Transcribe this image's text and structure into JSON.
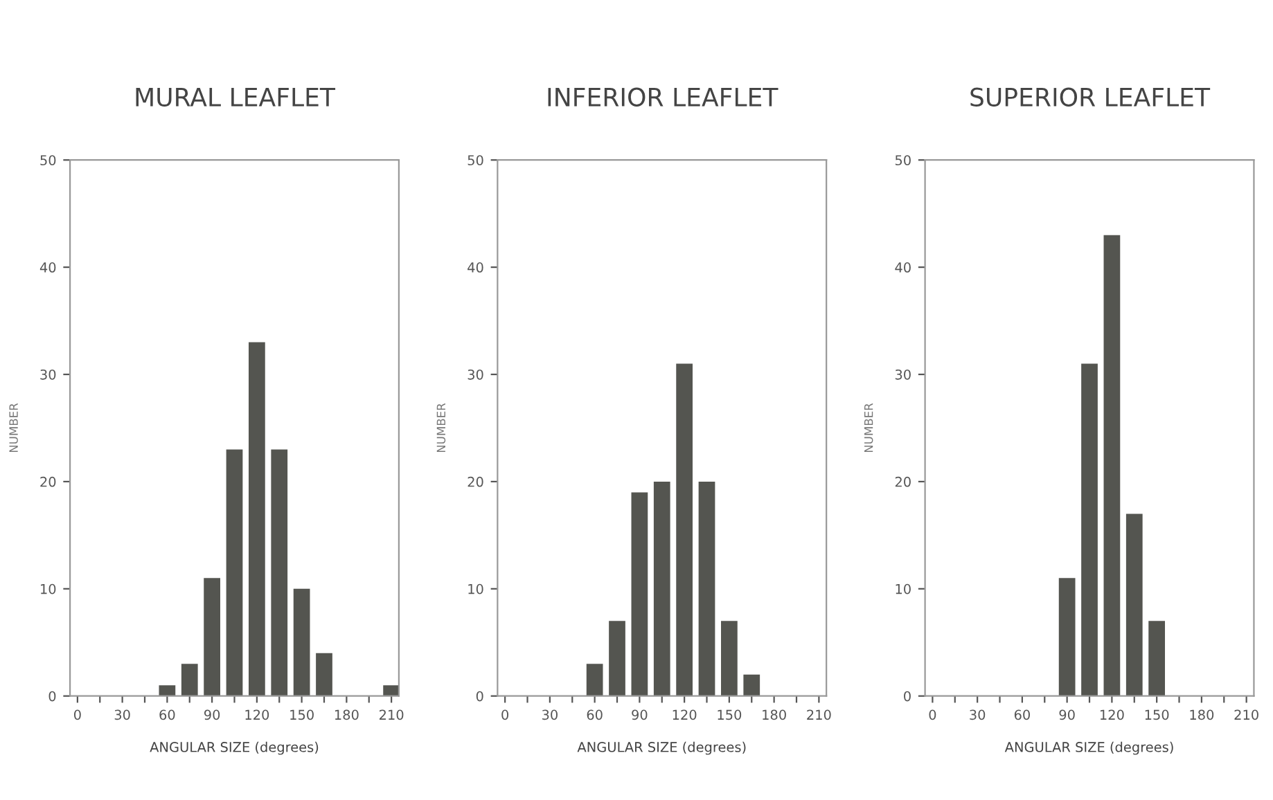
{
  "chart_data": [
    {
      "type": "bar",
      "title": "MURAL LEAFLET",
      "xlabel": "ANGULAR SIZE (degrees)",
      "ylabel": "NUMBER",
      "color": "#545550",
      "x": [
        60,
        75,
        90,
        105,
        120,
        135,
        150,
        165,
        210
      ],
      "values": [
        1,
        3,
        11,
        23,
        33,
        23,
        10,
        4,
        1
      ],
      "xlim": [
        -5,
        215
      ],
      "ylim": [
        0,
        50
      ],
      "xticks": [
        0,
        {
          "value": 15,
          "label": null
        },
        30,
        {
          "value": 45,
          "label": null
        },
        60,
        {
          "value": 75,
          "label": null
        },
        90,
        {
          "value": 105,
          "label": null
        },
        120,
        {
          "value": 135,
          "label": null
        },
        150,
        {
          "value": 165,
          "label": null
        },
        180,
        {
          "value": 195,
          "label": null
        },
        210
      ],
      "yticks": [
        0,
        10,
        20,
        30,
        40,
        50
      ],
      "grid": false,
      "legend": false
    },
    {
      "type": "bar",
      "title": "INFERIOR LEAFLET",
      "xlabel": "ANGULAR SIZE (degrees)",
      "ylabel": "NUMBER",
      "color": "#545550",
      "x": [
        60,
        75,
        90,
        105,
        120,
        135,
        150,
        165
      ],
      "values": [
        3,
        7,
        19,
        20,
        31,
        20,
        7,
        2
      ],
      "xlim": [
        -5,
        215
      ],
      "ylim": [
        0,
        50
      ],
      "xticks": [
        0,
        {
          "value": 15,
          "label": null
        },
        30,
        {
          "value": 45,
          "label": null
        },
        60,
        {
          "value": 75,
          "label": null
        },
        90,
        {
          "value": 105,
          "label": null
        },
        120,
        {
          "value": 135,
          "label": null
        },
        150,
        {
          "value": 165,
          "label": null
        },
        180,
        {
          "value": 195,
          "label": null
        },
        210
      ],
      "yticks": [
        0,
        10,
        20,
        30,
        40,
        50
      ],
      "grid": false,
      "legend": false
    },
    {
      "type": "bar",
      "title": "SUPERIOR LEAFLET",
      "xlabel": "ANGULAR SIZE (degrees)",
      "ylabel": "NUMBER",
      "color": "#545550",
      "x": [
        90,
        105,
        120,
        135,
        150
      ],
      "values": [
        11,
        31,
        43,
        17,
        7
      ],
      "xlim": [
        -5,
        215
      ],
      "ylim": [
        0,
        50
      ],
      "xticks": [
        0,
        {
          "value": 15,
          "label": null
        },
        30,
        {
          "value": 45,
          "label": null
        },
        60,
        {
          "value": 75,
          "label": null
        },
        90,
        {
          "value": 105,
          "label": null
        },
        120,
        {
          "value": 135,
          "label": null
        },
        150,
        {
          "value": 165,
          "label": null
        },
        180,
        {
          "value": 195,
          "label": null
        },
        210
      ],
      "yticks": [
        0,
        10,
        20,
        30,
        40,
        50
      ],
      "grid": false,
      "legend": false
    }
  ]
}
